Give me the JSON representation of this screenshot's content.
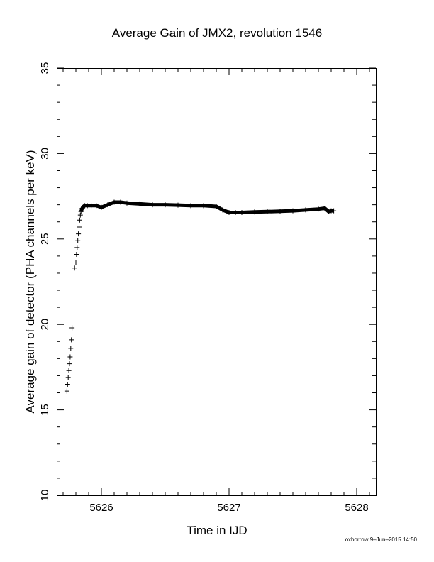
{
  "chart_data": {
    "type": "scatter",
    "title": "Average Gain of JMX2, revolution 1546",
    "xlabel": "Time in IJD",
    "ylabel": "Average gain of detector (PHA channels per keV)",
    "xlim": [
      5625.65,
      5628.15
    ],
    "ylim": [
      10,
      35
    ],
    "x_ticks": [
      5626,
      5627,
      5628
    ],
    "y_ticks": [
      10,
      15,
      20,
      25,
      30,
      35
    ],
    "marker": "+",
    "grid": false,
    "series": [
      {
        "x": [
          5625.73,
          5625.735,
          5625.74,
          5625.745,
          5625.75,
          5625.755,
          5625.76,
          5625.765,
          5625.77,
          5625.79,
          5625.8,
          5625.805,
          5625.81,
          5625.815,
          5625.82,
          5625.825,
          5625.83,
          5625.835,
          5625.84,
          5625.85,
          5625.86,
          5625.87,
          5625.89,
          5625.92,
          5625.96,
          5626.0,
          5626.05,
          5626.1,
          5626.15,
          5626.2,
          5626.3,
          5626.4,
          5626.5,
          5626.6,
          5626.7,
          5626.8,
          5626.9,
          5626.95,
          5627.0,
          5627.05,
          5627.1,
          5627.2,
          5627.3,
          5627.4,
          5627.5,
          5627.6,
          5627.7,
          5627.75,
          5627.78,
          5627.8,
          5627.82
        ],
        "y": [
          16.1,
          16.5,
          16.9,
          17.3,
          17.7,
          18.1,
          18.6,
          19.1,
          19.8,
          23.3,
          23.6,
          24.1,
          24.5,
          24.9,
          25.3,
          25.7,
          26.1,
          26.4,
          26.6,
          26.8,
          26.9,
          26.95,
          26.95,
          26.95,
          26.95,
          26.85,
          27.0,
          27.15,
          27.15,
          27.1,
          27.05,
          27.0,
          27.0,
          26.98,
          26.95,
          26.95,
          26.9,
          26.7,
          26.55,
          26.55,
          26.55,
          26.58,
          26.6,
          26.62,
          26.65,
          26.7,
          26.75,
          26.8,
          26.6,
          26.65,
          26.65
        ]
      }
    ]
  },
  "footer": {
    "text": "oxborrow  9–Jun–2015 14:50"
  }
}
